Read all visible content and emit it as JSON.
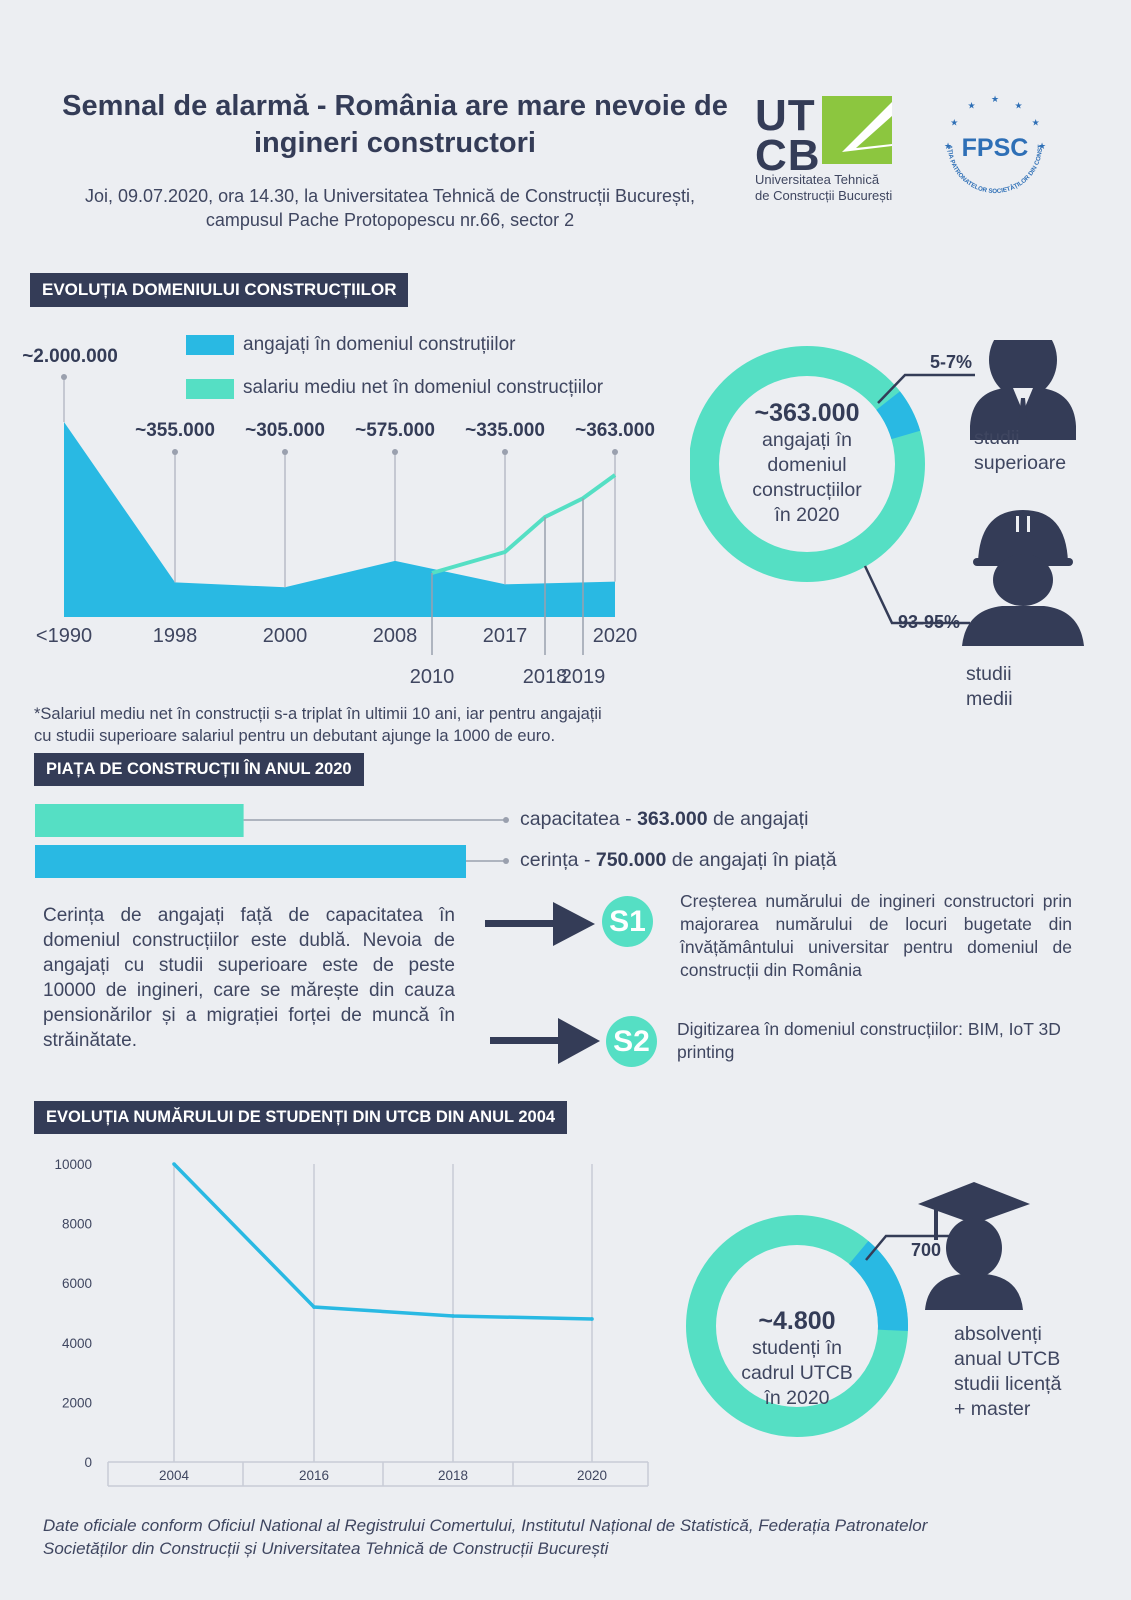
{
  "header": {
    "title_line1": "Semnal de alarmă - România are mare nevoie de",
    "title_line2": "ingineri constructori",
    "subtitle_line1": "Joi, 09.07.2020, ora 14.30, la Universitatea Tehnică de Construcții București,",
    "subtitle_line2": "campusul Pache Protopopescu nr.66, sector 2"
  },
  "logos": {
    "utcb_line1": "UT",
    "utcb_line2": "CB",
    "utcb_sub1": "Universitatea Tehnică",
    "utcb_sub2": "de Construcții București",
    "fpsc_text": "FPSC",
    "fpsc_ring": "FEDERAȚIA PATRONATELOR SOCIETĂȚILOR DIN CONSTRUCȚII"
  },
  "colors": {
    "dark": "#343c57",
    "blue": "#29b9e3",
    "teal": "#55dfc4",
    "background": "#eceef2"
  },
  "section1": {
    "header": "EVOLUȚIA  DOMENIULUI CONSTRUCȚIILOR",
    "legend_employees": "angajați în domeniul construțiilor",
    "legend_salary": "salariu mediu net în domeniul construcțiilor",
    "footnote_line1": "*Salariul mediu net în construcții s-a triplat în ultimii 10 ani, iar pentru angajații",
    "footnote_line2": "cu studii superioare salariul pentru un debutant ajunge la 1000 de euro.",
    "ring": {
      "value": "~363.000",
      "line1": "angajați în",
      "line2": "domeniul",
      "line3": "construcțiilor",
      "line4": "în 2020",
      "higher_pct": "5-7%",
      "higher_label1": "studii",
      "higher_label2": "superioare",
      "medium_pct": "93-95%",
      "medium_label1": "studii",
      "medium_label2": "medii",
      "higher_fraction": 0.06
    }
  },
  "section2": {
    "header": "PIAȚA DE CONSTRUCȚII ÎN ANUL 2020",
    "bar1_pre": "capacitatea - ",
    "bar1_bold": "363.000",
    "bar1_post": " de angajați",
    "bar2_pre": "cerința - ",
    "bar2_bold": "750.000",
    "bar2_post": " de angajați în piață",
    "paragraph": "Cerința de angajați față de capacitatea în domeniul construcțiilor este dublă. Nevoia de angajați cu studii superioare este de peste 10000 de ingineri, care se mărește din cauza pensionărilor și a migrației forței de muncă în străinătate.",
    "s1_label": "S1",
    "s1_text": "Creșterea numărului de ingineri constructori prin majorarea numărului de locuri bugetate din învățământului universitar pentru domeniul de construcții din România",
    "s2_label": "S2",
    "s2_text": "Digitizarea în domeniul construcțiilor: BIM, IoT 3D printing"
  },
  "section3": {
    "header": "EVOLUȚIA NUMĂRULUI  DE STUDENȚI DIN UTCB DIN ANUL 2004",
    "ring": {
      "value": "~4.800",
      "line1": "studenți în",
      "line2": "cadrul UTCB",
      "line3": "în 2020",
      "graduates": "700",
      "grad_label1": "absolvenți",
      "grad_label2": "anual UTCB",
      "grad_label3": "studii licență",
      "grad_label4": "+ master",
      "graduates_fraction": 0.146
    }
  },
  "footer": {
    "sources_line1": "Date oficiale conform Oficiul National al Registrului Comertului, Institutul Național de Statistică, Federația Patronatelor",
    "sources_line2": "Societăților din Construcții și Universitatea Tehnică de Construcții București"
  },
  "chart_data": [
    {
      "type": "area",
      "series": [
        {
          "name": "angajați în domeniul construțiilor",
          "x": [
            "<1990",
            "1998",
            "2000",
            "2008",
            "2017",
            "2020"
          ],
          "values": [
            2000000,
            355000,
            305000,
            575000,
            335000,
            363000
          ],
          "labels": [
            "~2.000.000",
            "~355.000",
            "~305.000",
            "~575.000",
            "~335.000",
            "~363.000"
          ]
        },
        {
          "name": "salariu mediu net în domeniul construcțiilor",
          "x": [
            "2010",
            "2017",
            "2018",
            "2019",
            "2020"
          ],
          "values": [
            1,
            1.45,
            2.2,
            2.6,
            3.1
          ]
        }
      ],
      "x_ticks_top": [
        "<1990",
        "1998",
        "2000",
        "2008",
        "2017",
        "2020"
      ],
      "x_ticks_bottom": [
        "2010",
        "2018",
        "2019"
      ]
    },
    {
      "type": "bar",
      "orientation": "horizontal",
      "categories": [
        "capacitatea",
        "cerința"
      ],
      "values": [
        363000,
        750000
      ]
    },
    {
      "type": "line",
      "x": [
        "2004",
        "2016",
        "2018",
        "2020"
      ],
      "values": [
        10000,
        5200,
        4900,
        4800
      ],
      "ylim": [
        0,
        10000
      ],
      "y_ticks": [
        0,
        2000,
        4000,
        6000,
        8000,
        10000
      ],
      "grid": true
    }
  ]
}
